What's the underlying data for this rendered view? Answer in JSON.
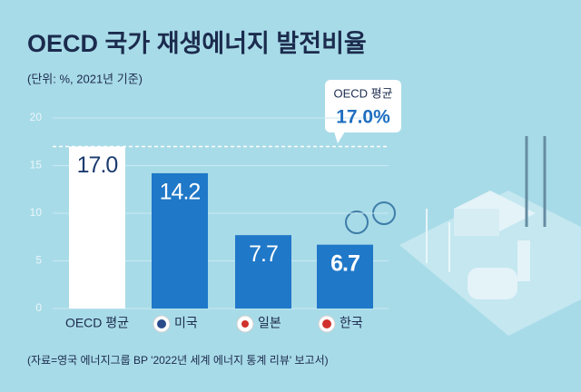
{
  "chart_data": {
    "type": "bar",
    "title": "OECD 국가 재생에너지 발전비율",
    "subtitle": "(단위: %, 2021년 기준)",
    "categories": [
      "OECD 평균",
      "미국",
      "일본",
      "한국"
    ],
    "values": [
      17.0,
      14.2,
      7.7,
      6.7
    ],
    "value_labels": [
      "17.0",
      "14.2",
      "7.7",
      "6.7"
    ],
    "colors": [
      "#ffffff",
      "#1f78c8",
      "#1f78c8",
      "#1f78c8"
    ],
    "ylim": [
      0,
      20
    ],
    "yticks": [
      0,
      5,
      10,
      15,
      20
    ],
    "grid": true,
    "reference_line": {
      "value": 17,
      "name": "OECD 평균",
      "label": "17.0%"
    },
    "source": "(자료=영국 에너지그룹 BP '2022년 세계 에너지 통계 리뷰' 보고서)"
  }
}
